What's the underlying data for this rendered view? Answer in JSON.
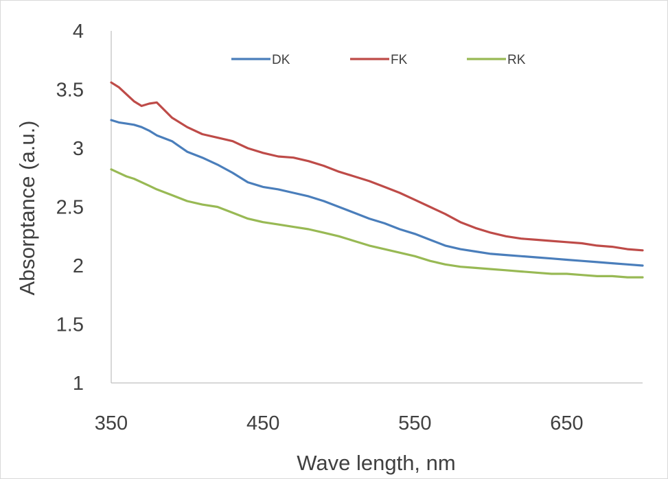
{
  "chart_data": {
    "type": "line",
    "title": "",
    "xlabel": "Wave length, nm",
    "ylabel": "Absorptance (a.u.)",
    "xlim": [
      350,
      700
    ],
    "ylim": [
      1,
      4
    ],
    "x_ticks": [
      "350",
      "450",
      "550",
      "650"
    ],
    "y_ticks": [
      "1",
      "1.5",
      "2",
      "2.5",
      "3",
      "3.5",
      "4"
    ],
    "grid": false,
    "legend_position": "top",
    "x": [
      350,
      355,
      360,
      365,
      370,
      375,
      380,
      390,
      400,
      410,
      420,
      430,
      440,
      450,
      460,
      470,
      480,
      490,
      500,
      510,
      520,
      530,
      540,
      550,
      560,
      570,
      580,
      590,
      600,
      610,
      620,
      630,
      640,
      650,
      660,
      670,
      680,
      690,
      700
    ],
    "series": [
      {
        "name": "DK",
        "color": "#4a7ebb",
        "values": [
          3.24,
          3.22,
          3.21,
          3.2,
          3.18,
          3.15,
          3.11,
          3.06,
          2.97,
          2.92,
          2.86,
          2.79,
          2.71,
          2.67,
          2.65,
          2.62,
          2.59,
          2.55,
          2.5,
          2.45,
          2.4,
          2.36,
          2.31,
          2.27,
          2.22,
          2.17,
          2.14,
          2.12,
          2.1,
          2.09,
          2.08,
          2.07,
          2.06,
          2.05,
          2.04,
          2.03,
          2.02,
          2.01,
          2.0
        ]
      },
      {
        "name": "FK",
        "color": "#be4b48",
        "values": [
          3.56,
          3.52,
          3.46,
          3.4,
          3.36,
          3.38,
          3.39,
          3.26,
          3.18,
          3.12,
          3.09,
          3.06,
          3.0,
          2.96,
          2.93,
          2.92,
          2.89,
          2.85,
          2.8,
          2.76,
          2.72,
          2.67,
          2.62,
          2.56,
          2.5,
          2.44,
          2.37,
          2.32,
          2.28,
          2.25,
          2.23,
          2.22,
          2.21,
          2.2,
          2.19,
          2.17,
          2.16,
          2.14,
          2.13
        ]
      },
      {
        "name": "RK",
        "color": "#98b954",
        "values": [
          2.82,
          2.79,
          2.76,
          2.74,
          2.71,
          2.68,
          2.65,
          2.6,
          2.55,
          2.52,
          2.5,
          2.45,
          2.4,
          2.37,
          2.35,
          2.33,
          2.31,
          2.28,
          2.25,
          2.21,
          2.17,
          2.14,
          2.11,
          2.08,
          2.04,
          2.01,
          1.99,
          1.98,
          1.97,
          1.96,
          1.95,
          1.94,
          1.93,
          1.93,
          1.92,
          1.91,
          1.91,
          1.9,
          1.9
        ]
      }
    ]
  }
}
